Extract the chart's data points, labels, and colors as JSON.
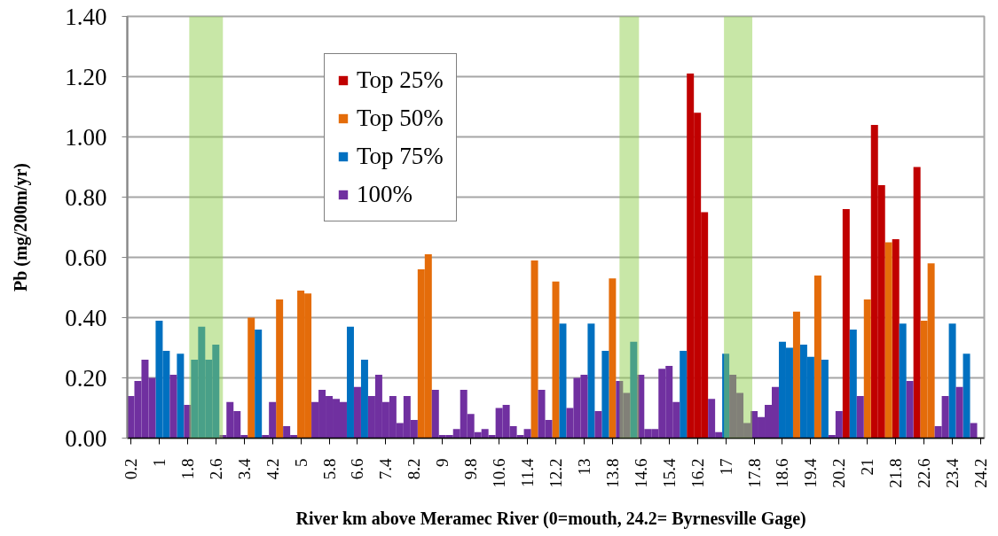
{
  "chart_data": {
    "type": "bar",
    "xlabel": "River  km above Meramec  River (0=mouth, 24.2= Byrnesville Gage)",
    "ylabel": "Pb (mg/200m/yr)",
    "xlim": [
      0.1,
      24.3
    ],
    "xticks": [
      0.2,
      1,
      1.8,
      2.6,
      3.4,
      4.2,
      5,
      5.8,
      6.6,
      7.4,
      8.2,
      9,
      9.8,
      10.6,
      11.4,
      12.2,
      13,
      13.8,
      14.6,
      15.4,
      16.2,
      17,
      17.8,
      18.6,
      19.4,
      20.2,
      21,
      21.8,
      22.6,
      23.4,
      24.2
    ],
    "ylim": [
      0,
      1.4
    ],
    "yticks": [
      {
        "value": 0,
        "label": "0.00"
      },
      {
        "value": 0.2,
        "label": "0.20"
      },
      {
        "value": 0.4,
        "label": "0.40"
      },
      {
        "value": 0.6,
        "label": "0.60"
      },
      {
        "value": 0.8,
        "label": "0.80"
      },
      {
        "value": 1.0,
        "label": "1.00"
      },
      {
        "value": 1.2,
        "label": "1.20"
      },
      {
        "value": 1.4,
        "label": "1.40"
      }
    ],
    "grid": "y",
    "legend": "top left",
    "bands": [
      {
        "axis": "x",
        "from": 1.85,
        "to": 2.8,
        "color": "#92d050"
      },
      {
        "axis": "x",
        "from": 14.0,
        "to": 14.55,
        "color": "#92d050"
      },
      {
        "axis": "x",
        "from": 16.95,
        "to": 17.75,
        "color": "#92d050"
      }
    ],
    "series": [
      {
        "name": "Top 25%",
        "color": "#c00000",
        "x": [
          16.0,
          16.2,
          16.4,
          20.4,
          21.2,
          21.4,
          21.8,
          22.4
        ],
        "values": [
          1.21,
          1.08,
          0.75,
          0.76,
          1.04,
          0.84,
          0.66,
          0.9
        ]
      },
      {
        "name": "Top 50%",
        "color": "#e46c0a",
        "x": [
          3.6,
          4.4,
          5.0,
          5.2,
          8.4,
          8.6,
          11.6,
          12.2,
          13.8,
          19.0,
          19.6,
          21.0,
          21.6,
          22.6,
          22.8
        ],
        "values": [
          0.4,
          0.46,
          0.49,
          0.48,
          0.56,
          0.61,
          0.59,
          0.52,
          0.53,
          0.42,
          0.54,
          0.46,
          0.65,
          0.39,
          0.58
        ]
      },
      {
        "name": "Top 75%",
        "color": "#0070c0",
        "x": [
          1.0,
          1.2,
          1.6,
          2.0,
          2.2,
          2.4,
          2.6,
          3.8,
          6.4,
          6.8,
          12.4,
          13.2,
          13.6,
          14.4,
          15.8,
          17.0,
          18.6,
          18.8,
          19.2,
          19.4,
          19.8,
          20.6,
          22.0,
          23.4,
          23.8
        ],
        "values": [
          0.39,
          0.29,
          0.28,
          0.26,
          0.37,
          0.26,
          0.31,
          0.36,
          0.37,
          0.26,
          0.38,
          0.38,
          0.29,
          0.32,
          0.29,
          0.28,
          0.32,
          0.3,
          0.31,
          0.27,
          0.26,
          0.36,
          0.38,
          0.38,
          0.28
        ]
      },
      {
        "name": "100%",
        "color": "#7030a0",
        "x": [
          0.2,
          0.4,
          0.6,
          0.8,
          1.4,
          1.8,
          2.8,
          3.0,
          3.2,
          3.4,
          4.0,
          4.2,
          4.6,
          4.8,
          5.4,
          5.6,
          5.8,
          6.0,
          6.2,
          6.6,
          7.0,
          7.2,
          7.4,
          7.6,
          7.8,
          8.0,
          8.2,
          8.8,
          9.0,
          9.2,
          9.4,
          9.6,
          9.8,
          10.0,
          10.2,
          10.4,
          10.6,
          10.8,
          11.0,
          11.2,
          11.4,
          11.8,
          12.0,
          12.6,
          12.8,
          13.0,
          13.4,
          14.0,
          14.2,
          14.6,
          14.8,
          15.0,
          15.2,
          15.4,
          15.6,
          16.6,
          16.8,
          17.2,
          17.4,
          17.6,
          17.8,
          18.0,
          18.2,
          18.4,
          20.0,
          20.2,
          20.8,
          22.2,
          23.0,
          23.2,
          23.6,
          24.0
        ],
        "values": [
          0.14,
          0.19,
          0.26,
          0.2,
          0.21,
          0.11,
          0.01,
          0.12,
          0.09,
          0.01,
          0.01,
          0.12,
          0.04,
          0.01,
          0.12,
          0.16,
          0.14,
          0.13,
          0.12,
          0.17,
          0.14,
          0.21,
          0.12,
          0.14,
          0.05,
          0.14,
          0.06,
          0.16,
          0.01,
          0.01,
          0.03,
          0.16,
          0.08,
          0.02,
          0.03,
          0.01,
          0.1,
          0.11,
          0.04,
          0.01,
          0.03,
          0.16,
          0.06,
          0.1,
          0.2,
          0.21,
          0.09,
          0.19,
          0.15,
          0.21,
          0.03,
          0.03,
          0.23,
          0.24,
          0.12,
          0.13,
          0.02,
          0.21,
          0.15,
          0.05,
          0.09,
          0.07,
          0.11,
          0.17,
          0.01,
          0.09,
          0.14,
          0.19,
          0.04,
          0.14,
          0.17,
          0.05
        ]
      }
    ]
  }
}
